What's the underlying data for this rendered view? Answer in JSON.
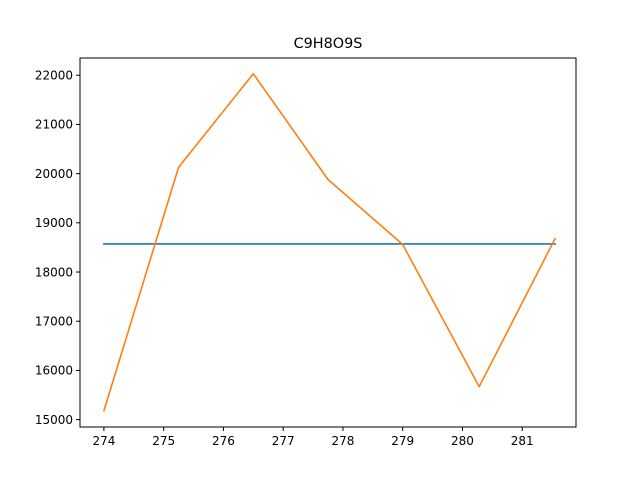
{
  "chart_data": {
    "type": "line",
    "title": "C9H8O9S",
    "xlabel": "",
    "ylabel": "",
    "xlim": [
      273.6,
      281.9
    ],
    "ylim": [
      14850,
      22350
    ],
    "x_ticks": [
      274,
      275,
      276,
      277,
      278,
      279,
      280,
      281
    ],
    "x_tick_labels": [
      "274",
      "275",
      "276",
      "277",
      "278",
      "279",
      "280",
      "281"
    ],
    "y_ticks": [
      15000,
      16000,
      17000,
      18000,
      19000,
      20000,
      21000,
      22000
    ],
    "y_tick_labels": [
      "15000",
      "16000",
      "17000",
      "18000",
      "19000",
      "20000",
      "21000",
      "22000"
    ],
    "grid": false,
    "series": [
      {
        "color": "#1f77b4",
        "x": [
          274.0,
          281.55
        ],
        "y": [
          18570,
          18570
        ]
      },
      {
        "color": "#ff7f0e",
        "x": [
          274.0,
          275.25,
          276.5,
          277.75,
          279.0,
          280.28,
          281.55
        ],
        "y": [
          15180,
          20130,
          22030,
          19880,
          18560,
          15670,
          18680
        ]
      }
    ]
  }
}
